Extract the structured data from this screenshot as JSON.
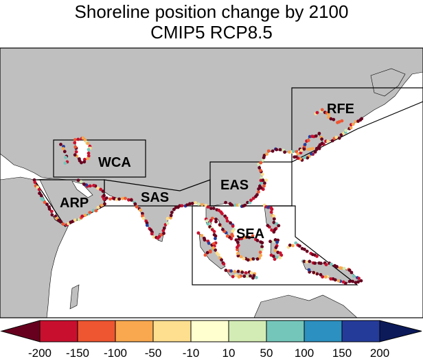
{
  "title": "Shoreline position change by 2100",
  "subtitle": "CMIP5 RCP8.5",
  "regions": [
    {
      "id": "wca",
      "label": "WCA"
    },
    {
      "id": "arp",
      "label": "ARP"
    },
    {
      "id": "sas",
      "label": "SAS"
    },
    {
      "id": "eas",
      "label": "EAS"
    },
    {
      "id": "sea",
      "label": "SEA"
    },
    {
      "id": "rfe",
      "label": "RFE"
    }
  ],
  "colorbar": {
    "colors": [
      "#67001f",
      "#c8102e",
      "#ee5531",
      "#f9a84f",
      "#fedf8f",
      "#ffffd0",
      "#d3ecb5",
      "#74c6bb",
      "#2c90c0",
      "#253b9a",
      "#0c1a5a"
    ],
    "ticks": [
      "-200",
      "-150",
      "-100",
      "-50",
      "-10",
      "10",
      "50",
      "100",
      "150",
      "200"
    ]
  },
  "land_color": "#bfbfbf"
}
